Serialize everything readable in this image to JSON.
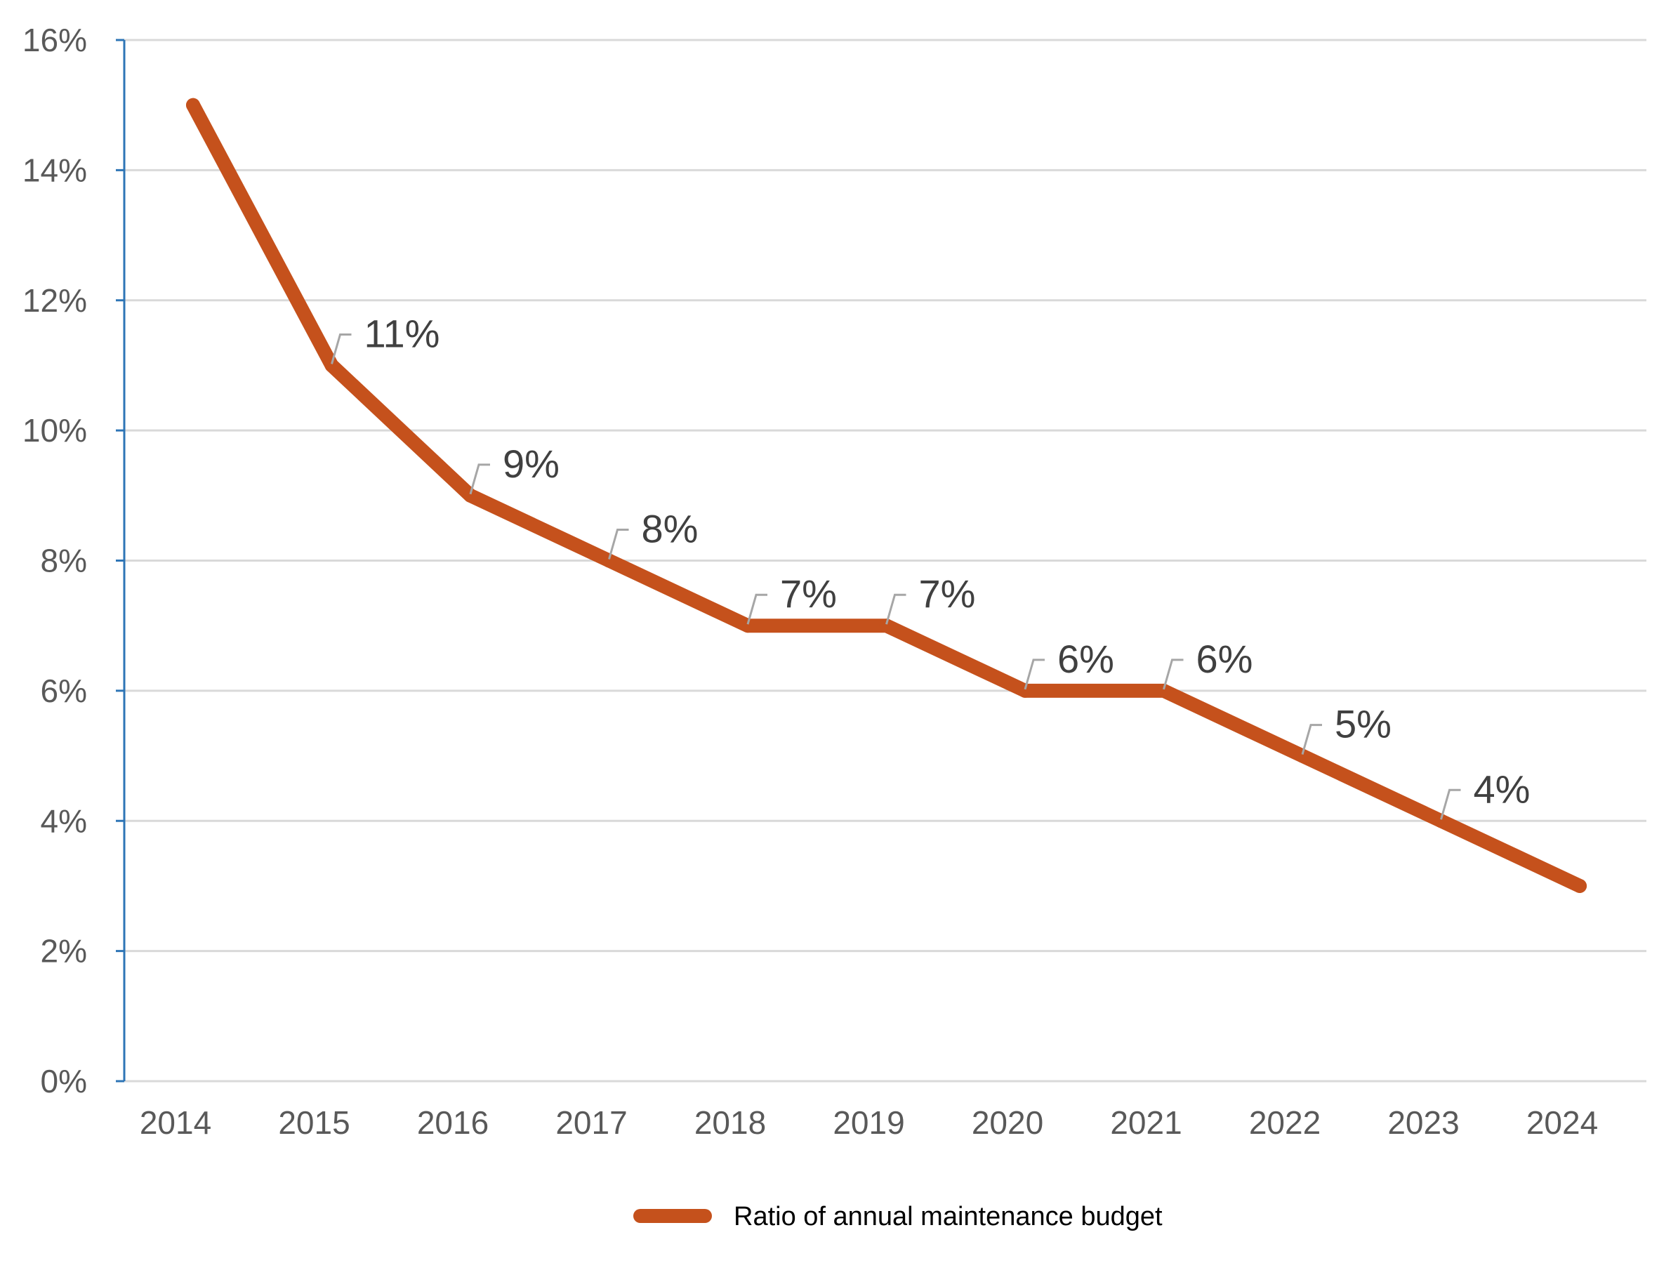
{
  "chart_data": {
    "type": "line",
    "title": "",
    "xlabel": "",
    "ylabel": "",
    "categories": [
      "2014",
      "2015",
      "2016",
      "2017",
      "2018",
      "2019",
      "2020",
      "2021",
      "2022",
      "2023",
      "2024"
    ],
    "series": [
      {
        "name": "Ratio of annual maintenance budget",
        "values": [
          15,
          11,
          9,
          8,
          7,
          7,
          6,
          6,
          5,
          4,
          3
        ],
        "data_labels": [
          null,
          "11%",
          "9%",
          "8%",
          "7%",
          "7%",
          "6%",
          "6%",
          "5%",
          "4%",
          null
        ],
        "color": "#c5511c"
      }
    ],
    "ylim": [
      0,
      16
    ],
    "yticks": [
      0,
      2,
      4,
      6,
      8,
      10,
      12,
      14,
      16
    ],
    "ytick_labels": [
      "0%",
      "2%",
      "4%",
      "6%",
      "8%",
      "10%",
      "12%",
      "14%",
      "16%"
    ],
    "grid": true,
    "legend_position": "bottom",
    "colors": {
      "line": "#c5511c",
      "grid": "#d9d9d9",
      "y_axis": "#2e75b6",
      "leader": "#a6a6a6"
    }
  }
}
